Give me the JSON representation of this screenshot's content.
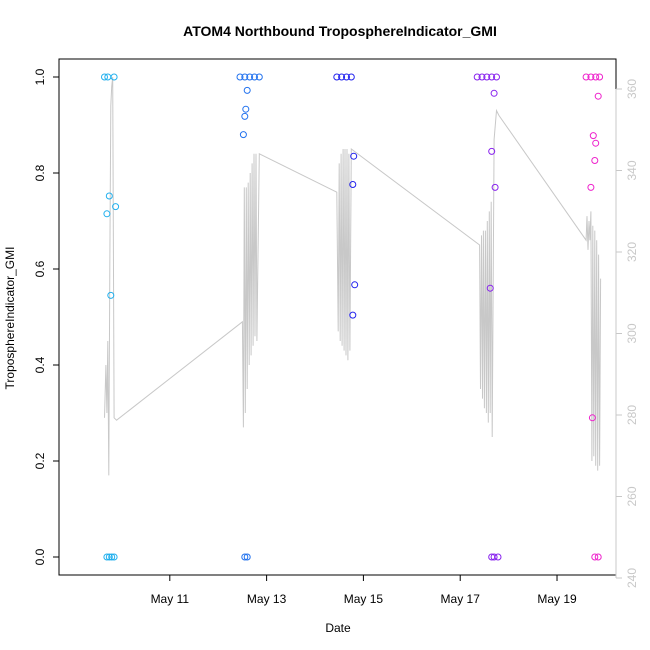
{
  "chart_data": {
    "type": "scatter",
    "title": "ATOM4 Northbound TroposphereIndicator_GMI",
    "xlabel": "Date",
    "ylabel": "TroposphereIndicator_GMI",
    "x_ticks": [
      "May 11",
      "May 13",
      "May 15",
      "May 17",
      "May 19"
    ],
    "xlim": [
      9.0,
      19.95
    ],
    "ylim": [
      0,
      1
    ],
    "y_ticks": [
      "0.0",
      "0.2",
      "0.4",
      "0.6",
      "0.8",
      "1.0"
    ],
    "y2lim": [
      240,
      360
    ],
    "y2_ticks": [
      "240",
      "260",
      "280",
      "300",
      "320",
      "340",
      "360"
    ],
    "line_color": "#c8c8c8",
    "series": [
      {
        "color": "#22b0ee",
        "points": [
          [
            9.65,
            1
          ],
          [
            9.72,
            1
          ],
          [
            9.85,
            1
          ],
          [
            9.75,
            0.752
          ],
          [
            9.7,
            0.715
          ],
          [
            9.88,
            0.73
          ],
          [
            9.78,
            0.545
          ],
          [
            9.7,
            0
          ],
          [
            9.75,
            0
          ],
          [
            9.8,
            0
          ],
          [
            9.85,
            0
          ]
        ]
      },
      {
        "color": "#2272ee",
        "points": [
          [
            12.45,
            1
          ],
          [
            12.55,
            1
          ],
          [
            12.65,
            1
          ],
          [
            12.75,
            1
          ],
          [
            12.85,
            1
          ],
          [
            12.6,
            0.972
          ],
          [
            12.57,
            0.933
          ],
          [
            12.55,
            0.918
          ],
          [
            12.52,
            0.88
          ],
          [
            12.55,
            0
          ],
          [
            12.6,
            0
          ]
        ]
      },
      {
        "color": "#2222ee",
        "points": [
          [
            14.45,
            1
          ],
          [
            14.55,
            1
          ],
          [
            14.65,
            1
          ],
          [
            14.75,
            1
          ],
          [
            14.8,
            0.835
          ],
          [
            14.78,
            0.776
          ],
          [
            14.82,
            0.567
          ],
          [
            14.78,
            0.504
          ]
        ]
      },
      {
        "color": "#8822ee",
        "points": [
          [
            17.35,
            1
          ],
          [
            17.45,
            1
          ],
          [
            17.55,
            1
          ],
          [
            17.65,
            1
          ],
          [
            17.75,
            1
          ],
          [
            17.7,
            0.966
          ],
          [
            17.65,
            0.845
          ],
          [
            17.72,
            0.77
          ],
          [
            17.62,
            0.56
          ],
          [
            17.65,
            0
          ],
          [
            17.7,
            0
          ],
          [
            17.78,
            0
          ]
        ]
      },
      {
        "color": "#ee22cc",
        "points": [
          [
            19.6,
            1
          ],
          [
            19.7,
            1
          ],
          [
            19.8,
            1
          ],
          [
            19.88,
            1
          ],
          [
            19.75,
            0.878
          ],
          [
            19.8,
            0.862
          ],
          [
            19.85,
            0.96
          ],
          [
            19.78,
            0.826
          ],
          [
            19.7,
            0.77
          ],
          [
            19.73,
            0.29
          ],
          [
            19.78,
            0
          ],
          [
            19.85,
            0
          ]
        ]
      }
    ],
    "line_data": [
      [
        9.65,
        0.29
      ],
      [
        9.68,
        0.4
      ],
      [
        9.7,
        0.3
      ],
      [
        9.72,
        0.45
      ],
      [
        9.74,
        0.17
      ],
      [
        9.76,
        0.6
      ],
      [
        9.78,
        0.94
      ],
      [
        9.8,
        0.98
      ],
      [
        9.82,
        1.0
      ],
      [
        9.85,
        0.29
      ],
      [
        9.9,
        0.285
      ],
      [
        12.5,
        0.49
      ],
      [
        12.52,
        0.27
      ],
      [
        12.54,
        0.77
      ],
      [
        12.56,
        0.3
      ],
      [
        12.58,
        0.77
      ],
      [
        12.6,
        0.35
      ],
      [
        12.62,
        0.78
      ],
      [
        12.64,
        0.4
      ],
      [
        12.66,
        0.8
      ],
      [
        12.68,
        0.42
      ],
      [
        12.7,
        0.82
      ],
      [
        12.72,
        0.44
      ],
      [
        12.74,
        0.84
      ],
      [
        12.76,
        0.46
      ],
      [
        12.78,
        0.84
      ],
      [
        12.8,
        0.45
      ],
      [
        12.85,
        0.84
      ],
      [
        14.45,
        0.76
      ],
      [
        14.48,
        0.47
      ],
      [
        14.5,
        0.82
      ],
      [
        14.52,
        0.45
      ],
      [
        14.54,
        0.84
      ],
      [
        14.56,
        0.44
      ],
      [
        14.58,
        0.85
      ],
      [
        14.6,
        0.43
      ],
      [
        14.62,
        0.85
      ],
      [
        14.64,
        0.42
      ],
      [
        14.66,
        0.85
      ],
      [
        14.68,
        0.41
      ],
      [
        14.7,
        0.84
      ],
      [
        14.72,
        0.43
      ],
      [
        14.75,
        0.85
      ],
      [
        17.4,
        0.65
      ],
      [
        17.42,
        0.35
      ],
      [
        17.44,
        0.67
      ],
      [
        17.46,
        0.33
      ],
      [
        17.48,
        0.68
      ],
      [
        17.5,
        0.31
      ],
      [
        17.52,
        0.68
      ],
      [
        17.54,
        0.3
      ],
      [
        17.56,
        0.7
      ],
      [
        17.58,
        0.28
      ],
      [
        17.6,
        0.72
      ],
      [
        17.62,
        0.3
      ],
      [
        17.64,
        0.74
      ],
      [
        17.66,
        0.25
      ],
      [
        17.7,
        0.87
      ],
      [
        17.75,
        0.93
      ],
      [
        17.8,
        0.92
      ],
      [
        19.6,
        0.66
      ],
      [
        19.62,
        0.71
      ],
      [
        19.64,
        0.64
      ],
      [
        19.66,
        0.7
      ],
      [
        19.68,
        0.66
      ],
      [
        19.7,
        0.72
      ],
      [
        19.72,
        0.2
      ],
      [
        19.74,
        0.69
      ],
      [
        19.76,
        0.21
      ],
      [
        19.78,
        0.68
      ],
      [
        19.8,
        0.19
      ],
      [
        19.82,
        0.66
      ],
      [
        19.84,
        0.18
      ],
      [
        19.86,
        0.63
      ],
      [
        19.88,
        0.19
      ],
      [
        19.9,
        0.58
      ]
    ]
  }
}
